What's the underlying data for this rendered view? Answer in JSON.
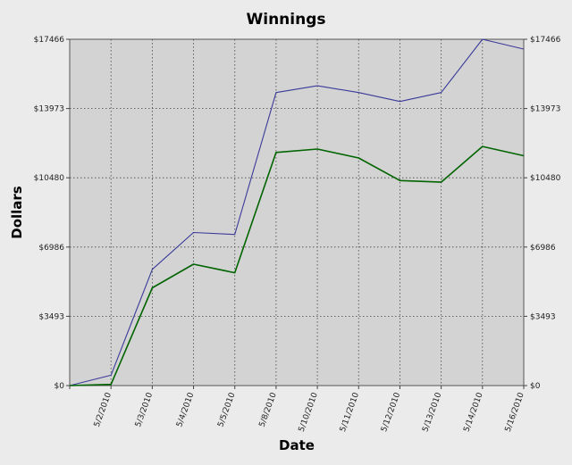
{
  "chart_data": {
    "type": "line",
    "title": "Winnings",
    "xlabel": "Date",
    "ylabel": "Dollars",
    "ylim": [
      0,
      17466
    ],
    "yticks": [
      "$0",
      "$3493",
      "$6986",
      "$10480",
      "$13973",
      "$17466"
    ],
    "categories": [
      "",
      "5/2/2010",
      "5/3/2010",
      "5/4/2010",
      "5/5/2010",
      "5/8/2010",
      "5/10/2010",
      "5/11/2010",
      "5/12/2010",
      "5/13/2010",
      "5/14/2010",
      "5/16/2010"
    ],
    "series": [
      {
        "values": [
          0,
          520,
          5860,
          7720,
          7620,
          14780,
          15120,
          14780,
          14330,
          14780,
          17466,
          16970
        ],
        "color": "#3a3a9a"
      },
      {
        "values": [
          0,
          60,
          4930,
          6120,
          5690,
          11760,
          11930,
          11480,
          10340,
          10260,
          12060,
          11590
        ],
        "color": "#006400"
      }
    ],
    "grid": true,
    "plot_background": "#d3d3d3"
  }
}
